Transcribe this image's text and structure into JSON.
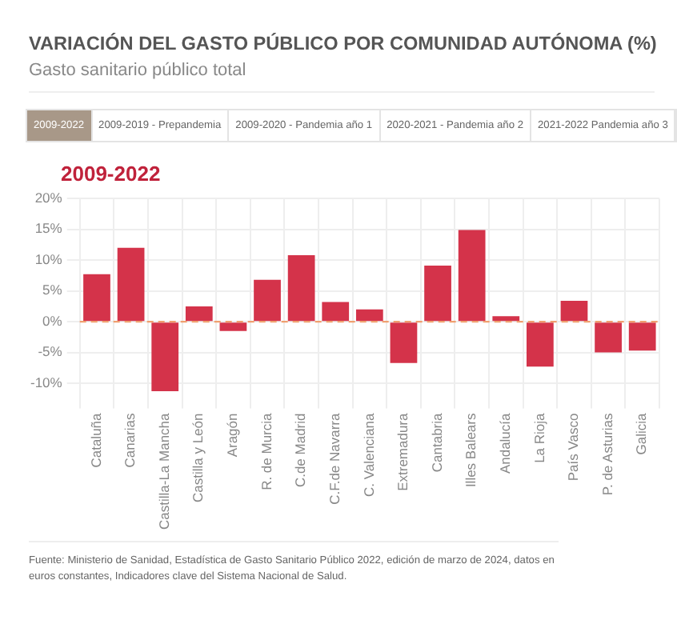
{
  "chart_data": {
    "type": "bar",
    "title": "VARIACIÓN DEL GASTO PÚBLICO POR COMUNIDAD AUTÓNOMA (%)",
    "subtitle": "Gasto sanitario público total",
    "annotations": [
      "2009-2022",
      "2009-2019 - Prepandemia",
      "2009-2020 - Pandemia año 1",
      "2020-2021 - Pandemia año 2",
      "2021-2022 Pandemia año 3",
      "2009-2022",
      "Fuente: Ministerio de Sanidad, Estadística de Gasto Sanitario Público 2022, edición de marzo de 2024, datos en euros constantes, Indicadores clave del Sistema Nacional de Salud."
    ],
    "categories": [
      "Cataluña",
      "Canarias",
      "Castilla-La Mancha",
      "Castilla y León",
      "Aragón",
      "R. de Murcia",
      "C.de Madrid",
      "C.F.de Navarra",
      "C. Valenciana",
      "Extremadura",
      "Cantabria",
      "Illes Balears",
      "Andalucía",
      "La Rioja",
      "País Vasco",
      "P. de Asturias",
      "Galicia"
    ],
    "values": [
      7.7,
      12.0,
      -11.3,
      2.5,
      -1.5,
      6.8,
      10.8,
      3.2,
      2.0,
      -6.7,
      9.1,
      14.9,
      0.9,
      -7.3,
      3.4,
      -5.0,
      -4.7
    ],
    "color": "#d4334a",
    "ylim": [
      -12,
      20
    ],
    "yticks": [
      {
        "value": -10,
        "label": "-10%"
      },
      {
        "value": -5,
        "label": "-5%"
      },
      {
        "value": 0,
        "label": "0%"
      },
      {
        "value": 5,
        "label": "5%"
      },
      {
        "value": 10,
        "label": "10%"
      },
      {
        "value": 15,
        "label": "15%"
      },
      {
        "value": 20,
        "label": "20%"
      }
    ],
    "ref_lines": [
      {
        "axis": "y",
        "value": 0,
        "color": "#f0a070",
        "line_style": "dashed"
      }
    ],
    "grid": true
  }
}
